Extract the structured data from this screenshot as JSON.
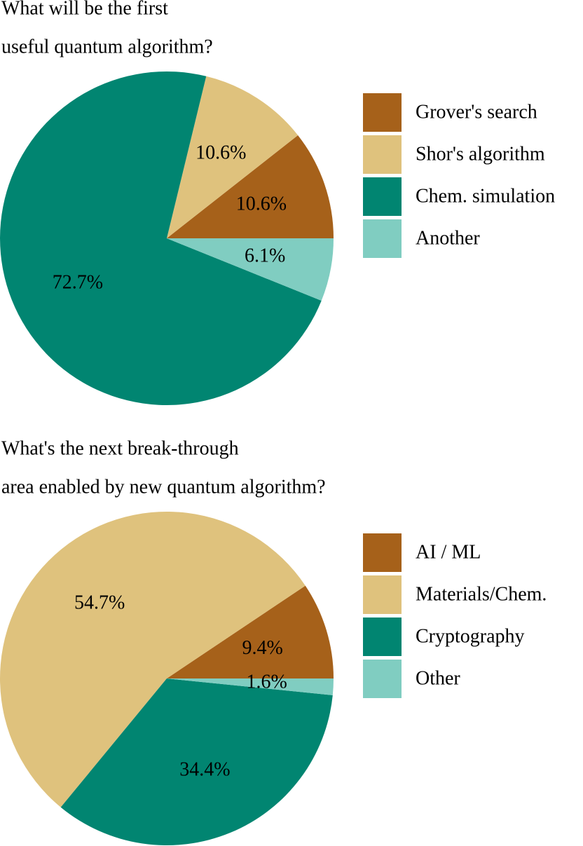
{
  "chart_data": [
    {
      "type": "pie",
      "title": [
        "What will be the first",
        "useful quantum algorithm?"
      ],
      "categories": [
        "Grover's search",
        "Shor's algorithm",
        "Chem. simulation",
        "Another"
      ],
      "values": [
        10.6,
        10.6,
        72.7,
        6.1
      ],
      "value_labels": [
        "10.6%",
        "10.6%",
        "72.7%",
        "6.1%"
      ],
      "colors": [
        "#a6611a",
        "#dfc27d",
        "#018571",
        "#80cdc1"
      ]
    },
    {
      "type": "pie",
      "title": [
        "What's the next break-through",
        "area enabled by new quantum algorithm?"
      ],
      "categories": [
        "AI / ML",
        "Materials/Chem.",
        "Cryptography",
        "Other"
      ],
      "values": [
        9.4,
        54.7,
        34.4,
        1.6
      ],
      "value_labels": [
        "9.4%",
        "54.7%",
        "34.4%",
        "1.6%"
      ],
      "colors": [
        "#a6611a",
        "#dfc27d",
        "#018571",
        "#80cdc1"
      ]
    }
  ]
}
